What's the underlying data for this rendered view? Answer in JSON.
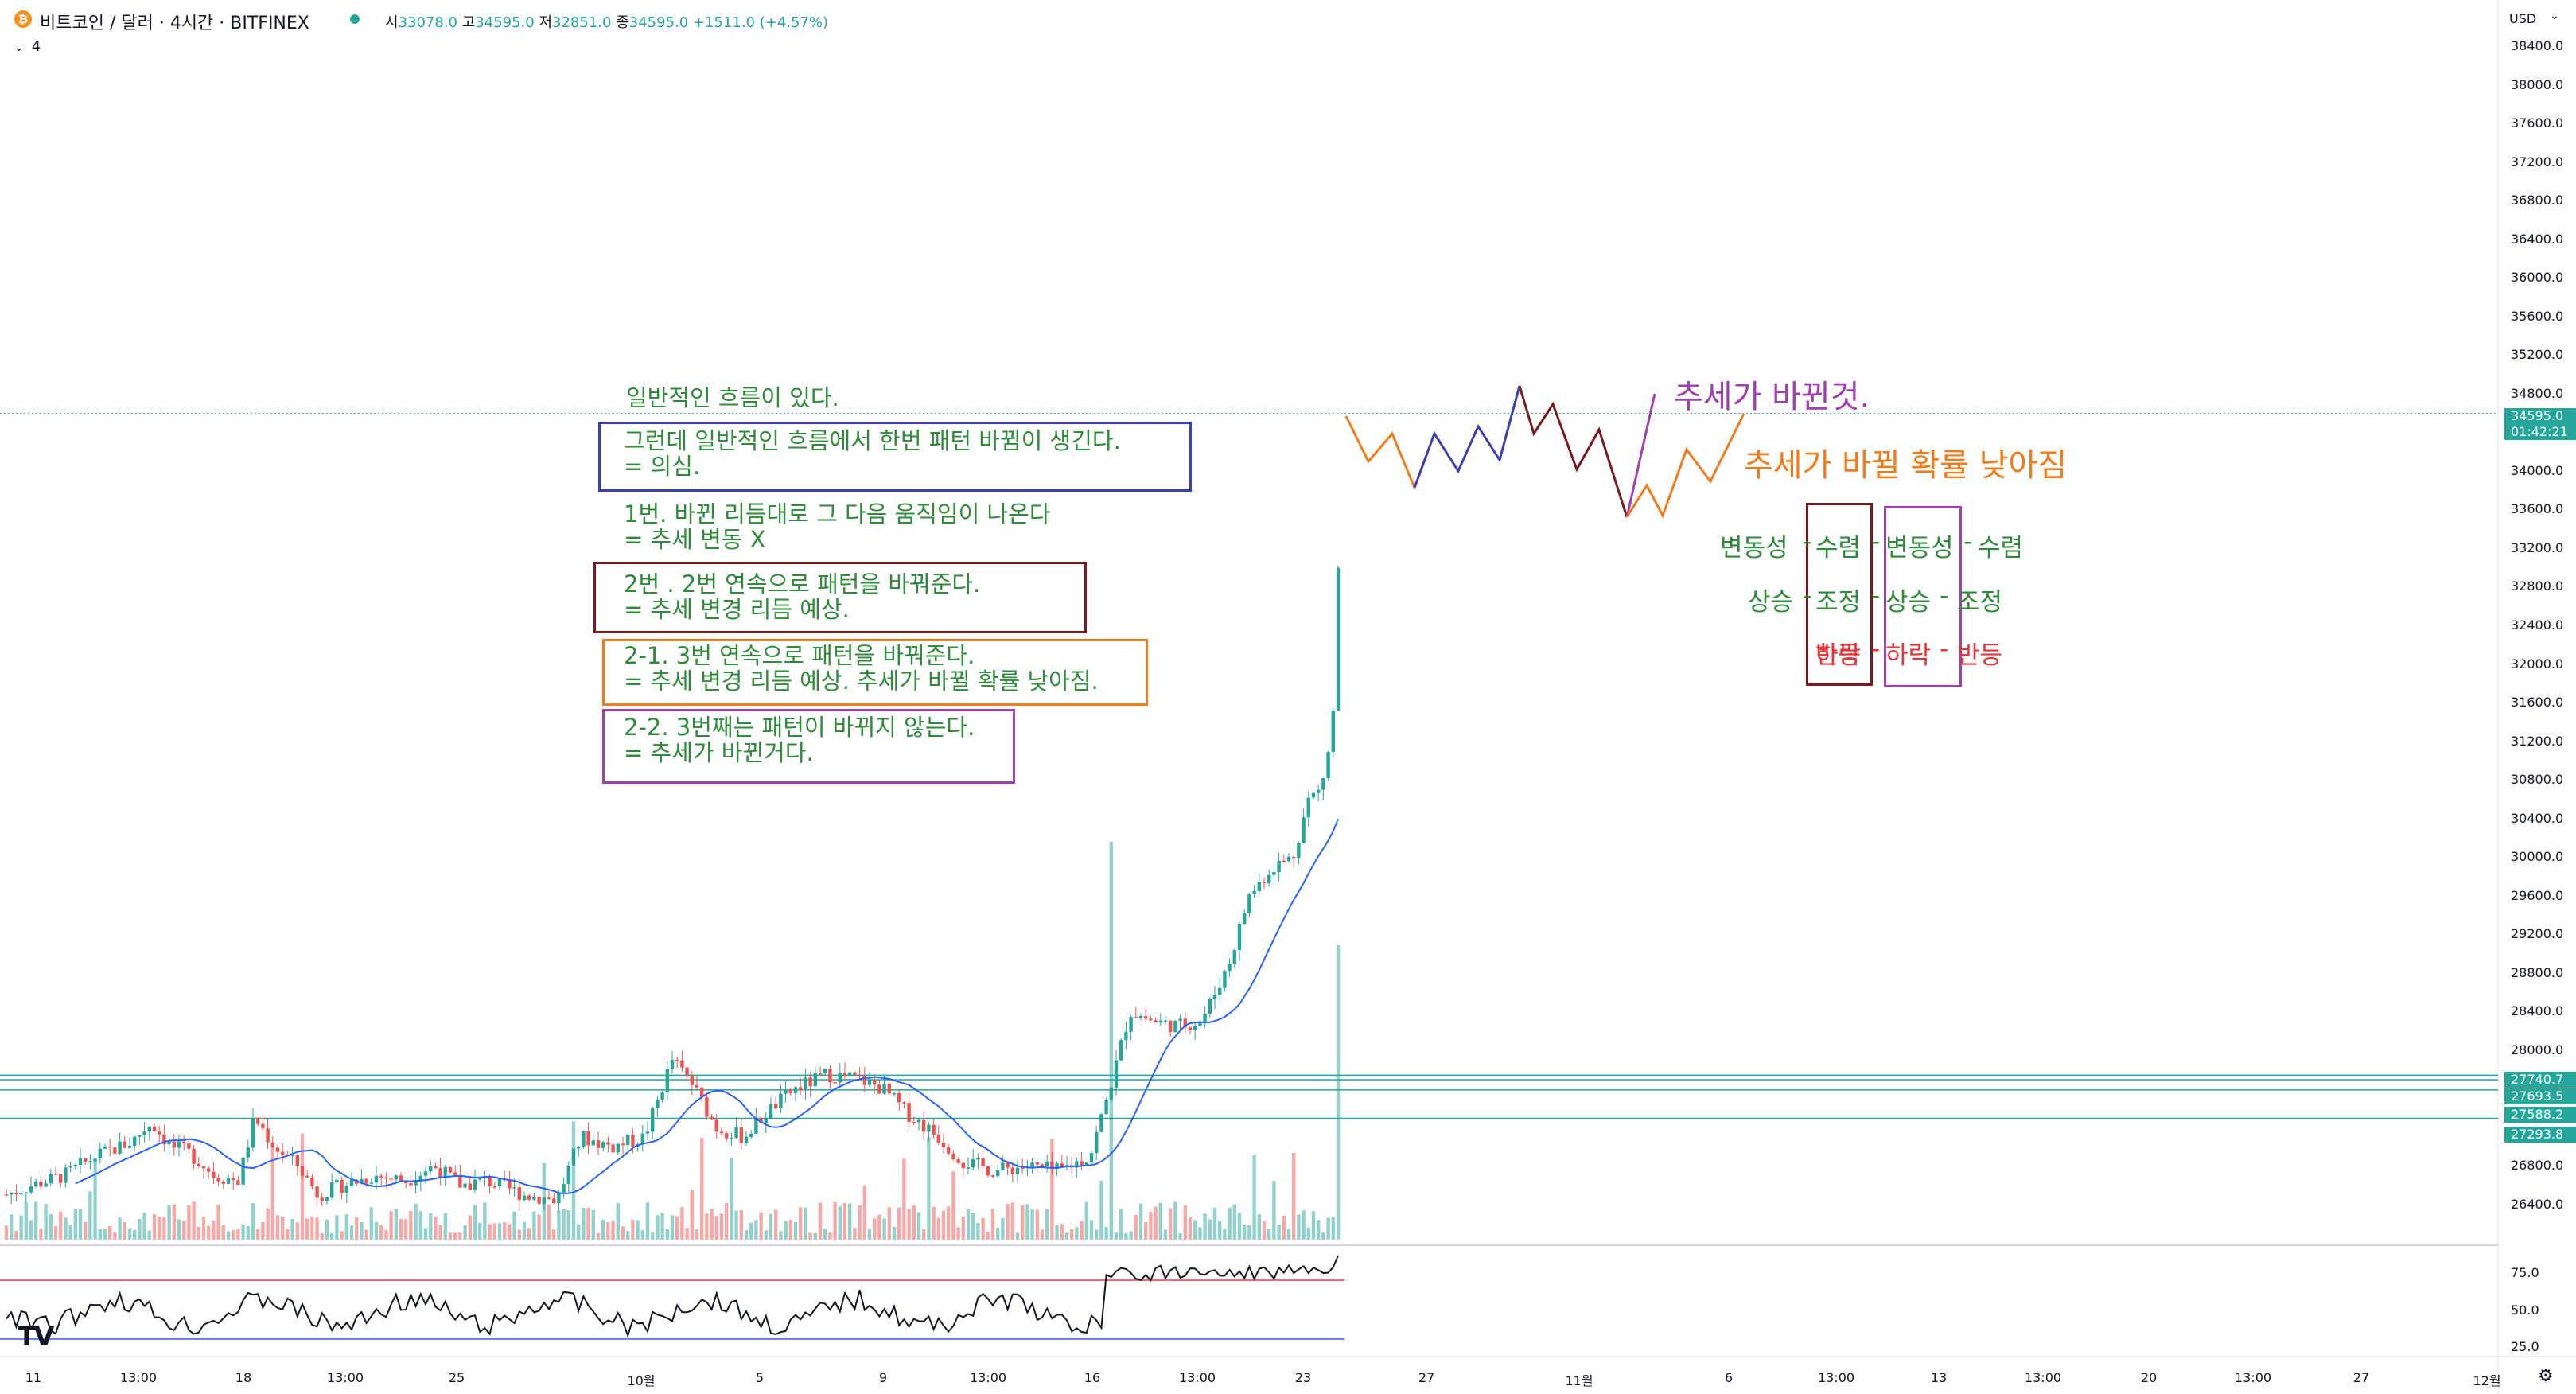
{
  "header": {
    "symbol_icon": "₿",
    "symbol_title": "비트코인 / 달러 · 4시간 · BITFINEX",
    "ohlc": [
      {
        "label": "시",
        "value": "33078.0"
      },
      {
        "label": "고",
        "value": "34595.0"
      },
      {
        "label": "저",
        "value": "32851.0"
      },
      {
        "label": "종",
        "value": "34595.0"
      },
      {
        "label": "",
        "value": "+1511.0 (+4.57%)"
      }
    ],
    "indicator_toggle": "4",
    "currency": "USD"
  },
  "price_axis": {
    "ticks": [
      "38400.0",
      "38000.0",
      "37600.0",
      "37200.0",
      "36800.0",
      "36400.0",
      "36000.0",
      "35600.0",
      "35200.0",
      "34800.0",
      "34000.0",
      "33600.0",
      "33200.0",
      "32800.0",
      "32400.0",
      "32000.0",
      "31600.0",
      "31200.0",
      "30800.0",
      "30400.0",
      "30000.0",
      "29600.0",
      "29200.0",
      "28800.0",
      "28400.0",
      "28000.0",
      "26800.0",
      "26400.0"
    ],
    "last_price": "34595.0",
    "countdown": "01:42:21",
    "level_badges": [
      "27740.7",
      "27693.5",
      "27588.2",
      "27293.8"
    ]
  },
  "oscillator_axis": {
    "ticks": [
      "75.0",
      "50.0",
      "25.0"
    ]
  },
  "time_axis": {
    "ticks": [
      "11",
      "13:00",
      "18",
      "13:00",
      "25",
      "10월",
      "5",
      "9",
      "13:00",
      "16",
      "13:00",
      "23",
      "27",
      "11월",
      "6",
      "13:00",
      "13",
      "13:00",
      "20",
      "13:00",
      "27",
      "12월"
    ]
  },
  "annotations": {
    "notes": [
      {
        "text": "일반적인 흐름이 있다.",
        "color": "#2e8b3a"
      },
      {
        "text": "그런데 일반적인 흐름에서 한번 패턴 바뀜이 생긴다.\n= 의심.",
        "color": "#2e8b3a",
        "box": "#3a3fb5"
      },
      {
        "text": "1번. 바뀐 리듬대로 그 다음 움직임이 나온다\n= 추세 변동 X",
        "color": "#2e8b3a"
      },
      {
        "text": "2번 . 2번 연속으로 패턴을 바꿔준다.\n= 추세 변경 리듬 예상.",
        "color": "#2e8b3a",
        "box": "#7b1a1f"
      },
      {
        "text": "2-1. 3번 연속으로 패턴을 바꿔준다.\n= 추세 변경 리듬 예상. 추세가 바뀔 확률 낮아짐.",
        "color": "#2e8b3a",
        "box": "#f07c1b"
      },
      {
        "text": "2-2. 3번째는 패턴이 바뀌지 않는다.\n= 추세가 바뀐거다.",
        "color": "#2e8b3a",
        "box": "#a040b0"
      }
    ],
    "trend_changed": "추세가 바뀐것.",
    "trend_change_low": "추세가 바뀔 확률 낮아짐",
    "row1": [
      "변동성",
      "-",
      "수렴",
      "-",
      "변동성",
      "-",
      "수렴"
    ],
    "row2": [
      "상승",
      "-",
      "조정",
      "-",
      "상승",
      "-",
      "조정"
    ],
    "row3": [
      "하락",
      "-",
      "반등",
      "-",
      "하락",
      "-",
      "반등"
    ]
  },
  "colors": {
    "up": "#26a69a",
    "down": "#ef5350",
    "ma": "#2962ff",
    "accent_green": "#2e8b3a",
    "purple": "#a040b0",
    "orange": "#f07c1b",
    "dark_red": "#7b1a1f",
    "navy": "#3a3fb5",
    "level_line": "#26a69a",
    "red_text": "#e8333a"
  },
  "icons": [
    "bitcoin-icon",
    "live-dot-icon",
    "chevron-down-icon",
    "tradingview-logo-icon",
    "settings-gear-icon"
  ]
}
